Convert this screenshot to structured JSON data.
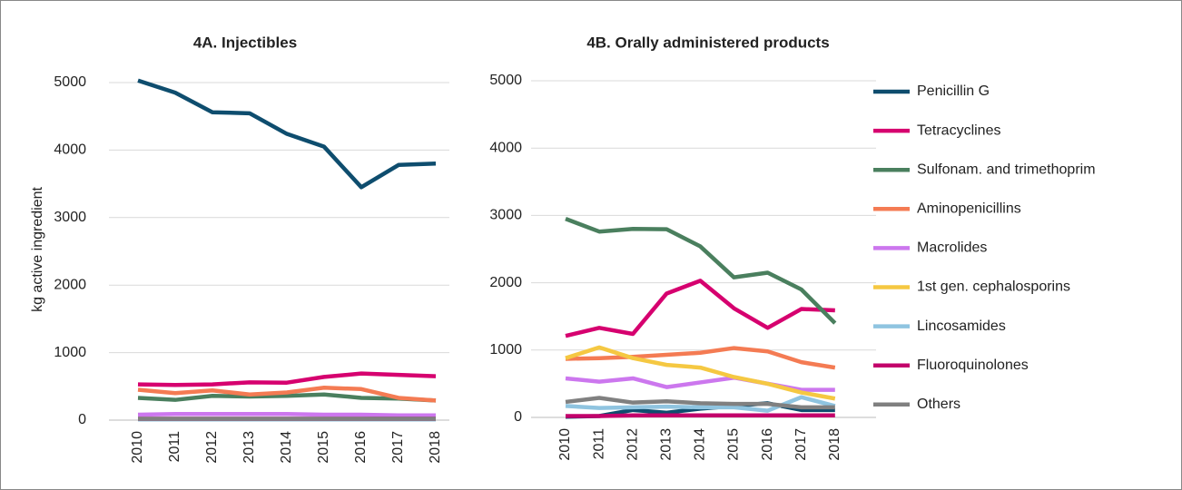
{
  "chart_data": [
    {
      "type": "line",
      "title": "4A. Injectibles",
      "y_label": "kg active ingredient",
      "categories": [
        "2010",
        "2011",
        "2012",
        "2013",
        "2014",
        "2015",
        "2016",
        "2017",
        "2018"
      ],
      "ylim": [
        0,
        5000
      ],
      "yticks": [
        0,
        1000,
        2000,
        3000,
        4000,
        5000
      ],
      "grid": true,
      "series": [
        {
          "name": "Penicillin G",
          "color": "#0e4d6e",
          "values": [
            5030,
            4850,
            4560,
            4545,
            4240,
            4050,
            3450,
            3780,
            3800
          ]
        },
        {
          "name": "Tetracyclines",
          "color": "#d6006f",
          "values": [
            530,
            520,
            530,
            560,
            555,
            640,
            690,
            670,
            650
          ]
        },
        {
          "name": "Sulfonam. and trimethoprim",
          "color": "#4a7f5e",
          "values": [
            330,
            300,
            360,
            350,
            360,
            380,
            330,
            320,
            290
          ]
        },
        {
          "name": "Aminopenicillins",
          "color": "#f47b53",
          "values": [
            450,
            400,
            440,
            380,
            410,
            480,
            460,
            330,
            290
          ]
        },
        {
          "name": "Macrolides",
          "color": "#cc77ee",
          "values": [
            80,
            90,
            90,
            90,
            90,
            80,
            80,
            70,
            70
          ]
        },
        {
          "name": "1st gen. cephalosporins",
          "color": "#f5c842",
          "values": [
            10,
            10,
            10,
            10,
            10,
            10,
            10,
            10,
            10
          ]
        },
        {
          "name": "Lincosamides",
          "color": "#8fc4e0",
          "values": [
            10,
            10,
            10,
            10,
            10,
            10,
            10,
            10,
            10
          ]
        },
        {
          "name": "Fluoroquinolones",
          "color": "#c3006b",
          "values": [
            20,
            20,
            20,
            20,
            20,
            20,
            20,
            20,
            20
          ]
        },
        {
          "name": "Others",
          "color": "#808080",
          "values": [
            20,
            20,
            20,
            20,
            20,
            20,
            20,
            20,
            20
          ]
        }
      ]
    },
    {
      "type": "line",
      "title": "4B. Orally administered products",
      "categories": [
        "2010",
        "2011",
        "2012",
        "2013",
        "2014",
        "2015",
        "2016",
        "2017",
        "2018"
      ],
      "ylim": [
        0,
        5000
      ],
      "yticks": [
        0,
        1000,
        2000,
        3000,
        4000,
        5000
      ],
      "grid": true,
      "series": [
        {
          "color": "#0e4d6e",
          "values": [
            10,
            20,
            110,
            70,
            130,
            170,
            210,
            110,
            110
          ]
        },
        {
          "color": "#d6006f",
          "values": [
            1210,
            1330,
            1240,
            1840,
            2030,
            1620,
            1330,
            1610,
            1590
          ]
        },
        {
          "color": "#4a7f5e",
          "values": [
            2950,
            2760,
            2800,
            2795,
            2540,
            2080,
            2150,
            1900,
            1400
          ]
        },
        {
          "color": "#f47b53",
          "values": [
            870,
            880,
            900,
            930,
            960,
            1030,
            980,
            820,
            740
          ]
        },
        {
          "color": "#cc77ee",
          "values": [
            580,
            530,
            580,
            450,
            520,
            590,
            500,
            410,
            410
          ]
        },
        {
          "color": "#f5c842",
          "values": [
            880,
            1040,
            880,
            780,
            740,
            600,
            500,
            370,
            280
          ]
        },
        {
          "color": "#8fc4e0",
          "values": [
            170,
            140,
            150,
            160,
            150,
            150,
            100,
            300,
            170
          ]
        },
        {
          "color": "#c3006b",
          "values": [
            20,
            20,
            30,
            30,
            30,
            30,
            30,
            30,
            30
          ]
        },
        {
          "color": "#808080",
          "values": [
            230,
            290,
            220,
            240,
            210,
            200,
            200,
            150,
            150
          ]
        }
      ]
    }
  ]
}
